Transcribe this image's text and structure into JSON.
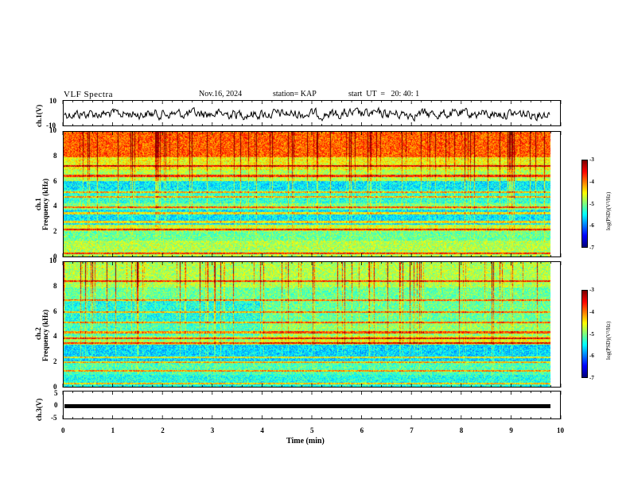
{
  "header": {
    "title": "VLF Spectra",
    "date": "Nov.16, 2024",
    "station": "station= KAP",
    "start": "start  UT  =   20: 40: 1"
  },
  "chart_data": [
    {
      "type": "line",
      "name": "ch1-waveform",
      "ylabel": "ch.1(V)",
      "ylim": [
        -10,
        10
      ],
      "yticks": [
        "10",
        "-10"
      ],
      "x_range_min": [
        0,
        9.8
      ]
    },
    {
      "type": "heatmap",
      "name": "ch1-spectrogram",
      "ylabel_line1": "ch.1",
      "ylabel_line2": "Frequency (kHz)",
      "ylim": [
        0,
        10
      ],
      "yticks": [
        "0",
        "2",
        "4",
        "6",
        "8",
        "10"
      ],
      "colorbar": {
        "label": "log(PSD)(V²/Hz)",
        "range": [
          -7,
          -3
        ],
        "ticks": [
          "-3",
          "-4",
          "-5",
          "-6",
          "-7"
        ]
      }
    },
    {
      "type": "heatmap",
      "name": "ch2-spectrogram",
      "ylabel_line1": "ch.2",
      "ylabel_line2": "Frequency (kHz)",
      "ylim": [
        0,
        10
      ],
      "yticks": [
        "0",
        "2",
        "4",
        "6",
        "8",
        "10"
      ],
      "colorbar": {
        "label": "log(PSD)(V²/Hz)",
        "range": [
          -7,
          -3
        ],
        "ticks": [
          "-3",
          "-4",
          "-5",
          "-6",
          "-7"
        ]
      }
    },
    {
      "type": "line",
      "name": "ch3-waveform",
      "ylabel": "ch.3(V)",
      "ylim": [
        -5,
        5
      ],
      "yticks": [
        "5",
        "0",
        "-5"
      ],
      "xlabel": "Time (min)",
      "xlim": [
        0,
        10
      ],
      "xticks": [
        "0",
        "1",
        "2",
        "3",
        "4",
        "5",
        "6",
        "7",
        "8",
        "9",
        "10"
      ]
    }
  ]
}
